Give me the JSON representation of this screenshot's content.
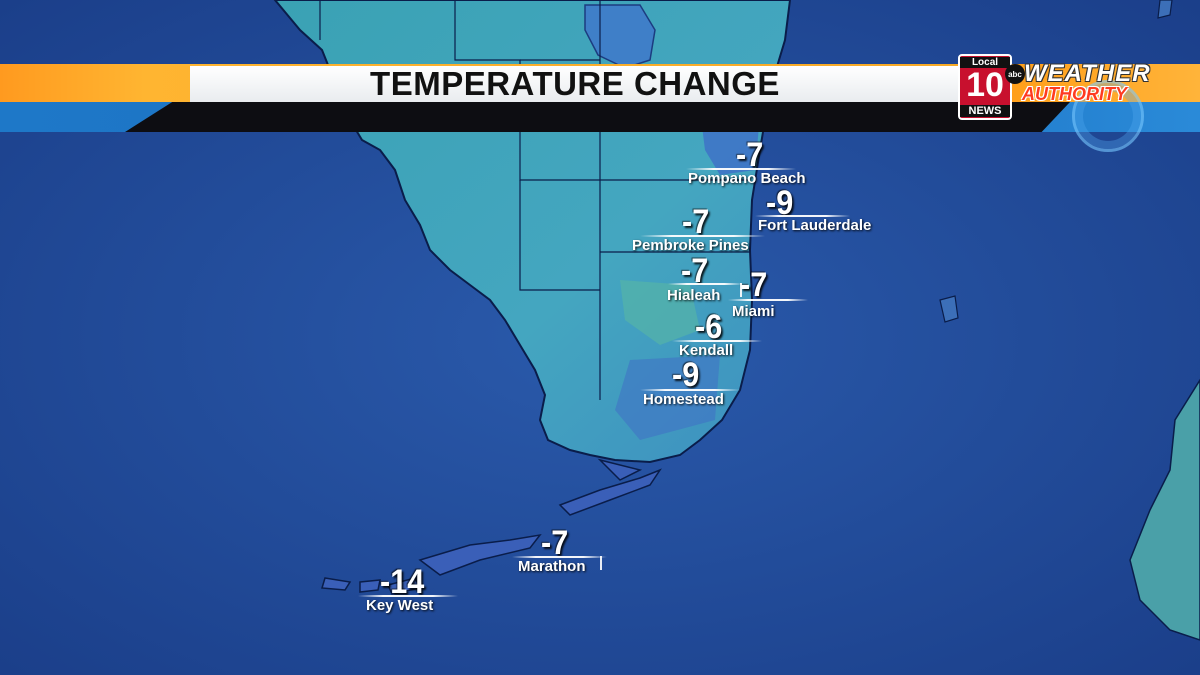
{
  "title": "TEMPERATURE CHANGE",
  "logo": {
    "local_label": "Local",
    "channel_number": "10",
    "news_label": "NEWS",
    "network": "abc",
    "brand_top": "WEATHER",
    "brand_bottom": "AUTHORITY"
  },
  "colors": {
    "ocean": "#1f4b9a",
    "land": "#3f9fb0",
    "banner_orange": "#f5a623",
    "banner_blue": "#1a6fc0",
    "banner_dark": "#0d0d12",
    "logo_red": "#c8102e"
  },
  "locations": [
    {
      "city": "Pompano Beach",
      "change": "-7"
    },
    {
      "city": "Fort Lauderdale",
      "change": "-9"
    },
    {
      "city": "Pembroke Pines",
      "change": "-7"
    },
    {
      "city": "Hialeah",
      "change": "-7"
    },
    {
      "city": "Miami",
      "change": "-7"
    },
    {
      "city": "Kendall",
      "change": "-6"
    },
    {
      "city": "Homestead",
      "change": "-9"
    },
    {
      "city": "Marathon",
      "change": "-7"
    },
    {
      "city": "Key West",
      "change": "-14"
    }
  ]
}
